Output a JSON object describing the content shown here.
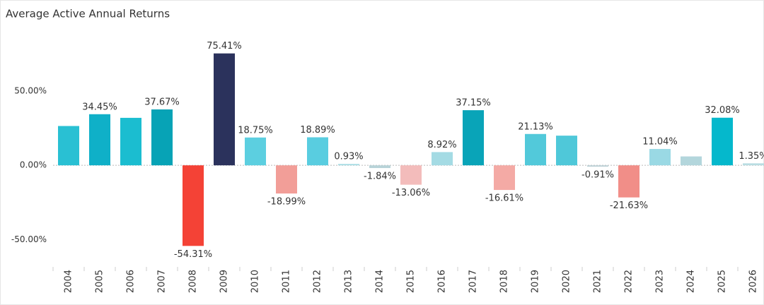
{
  "chart_data": {
    "type": "bar",
    "title": "Average Active Annual Returns",
    "categories": [
      "2004",
      "2005",
      "2006",
      "2007",
      "2008",
      "2009",
      "2010",
      "2011",
      "2012",
      "2013",
      "2014",
      "2015",
      "2016",
      "2017",
      "2018",
      "2019",
      "2020",
      "2021",
      "2022",
      "2023",
      "2024",
      "2025",
      "2026"
    ],
    "values": [
      26.5,
      34.45,
      32,
      37.67,
      -54.31,
      75.41,
      18.75,
      -18.99,
      18.89,
      0.93,
      -1.84,
      -13.06,
      8.92,
      37.15,
      -16.61,
      21.13,
      20,
      -0.91,
      -21.63,
      11.04,
      6,
      32.08,
      1.35
    ],
    "value_labels": [
      null,
      "34.45%",
      null,
      "37.67%",
      "-54.31%",
      "75.41%",
      "18.75%",
      "-18.99%",
      "18.89%",
      "0.93%",
      "-1.84%",
      "-13.06%",
      "8.92%",
      "37.15%",
      "-16.61%",
      "21.13%",
      null,
      "-0.91%",
      "-21.63%",
      "11.04%",
      null,
      "32.08%",
      "1.35%"
    ],
    "colors": [
      "#29c0d3",
      "#0fb0c8",
      "#1bbdd0",
      "#07a3b6",
      "#f44236",
      "#2b325c",
      "#5ccfe0",
      "#f29e98",
      "#59cde0",
      "#a9dde4",
      "#b8d3d8",
      "#f3bcbb",
      "#a4dbe4",
      "#09a4b8",
      "#f4aaa5",
      "#52c9da",
      "#4fc8d9",
      "#bcd1d6",
      "#f18e88",
      "#9ad9e4",
      "#b3d6dc",
      "#05b8cc",
      "#b9dde2"
    ],
    "ylim": [
      -67,
      90
    ],
    "yticks": [
      {
        "value": -50,
        "label": "-50.00%"
      },
      {
        "value": 0,
        "label": "0.00%"
      },
      {
        "value": 50,
        "label": "50.00%"
      }
    ]
  }
}
